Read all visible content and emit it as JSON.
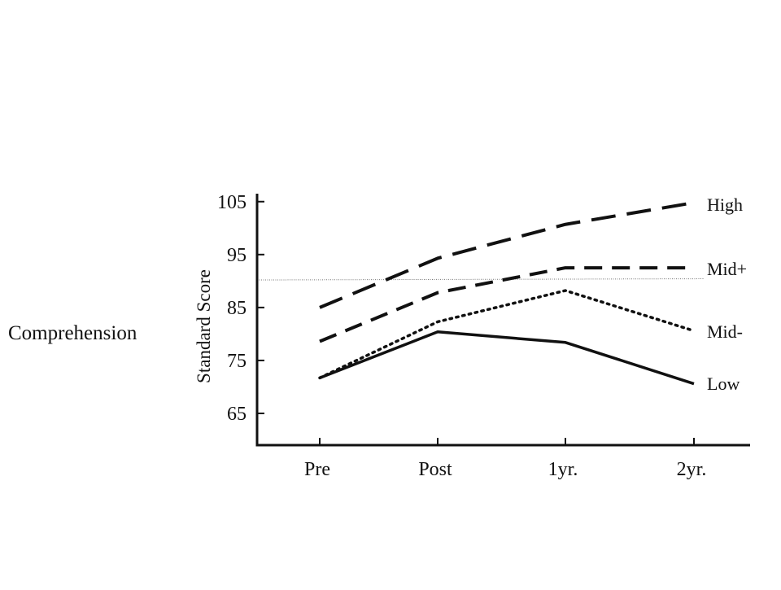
{
  "side_label": "Comprehension",
  "chart_data": {
    "type": "line",
    "title": "",
    "xlabel": "",
    "ylabel": "Standard Score",
    "categories": [
      "Pre",
      "Post",
      "1yr.",
      "2yr."
    ],
    "yticks": [
      65,
      75,
      85,
      95,
      105
    ],
    "ylim": [
      59,
      106.5
    ],
    "reference_line": 90.2,
    "legend_placement": "right-end-of-lines",
    "series": [
      {
        "name": "High",
        "values": [
          85,
          94.3,
          100.7,
          104.8
        ],
        "dash": "long-dash"
      },
      {
        "name": "Mid+",
        "values": [
          78.6,
          87.8,
          92.5,
          92.5
        ],
        "dash": "dash"
      },
      {
        "name": "Mid-",
        "values": [
          71.7,
          82.3,
          88.2,
          80.6
        ],
        "dash": "dot"
      },
      {
        "name": "Low",
        "values": [
          71.7,
          80.4,
          78.4,
          70.6
        ],
        "dash": "solid"
      }
    ],
    "colors": {
      "line": "#111111",
      "reference": "#777777"
    }
  }
}
